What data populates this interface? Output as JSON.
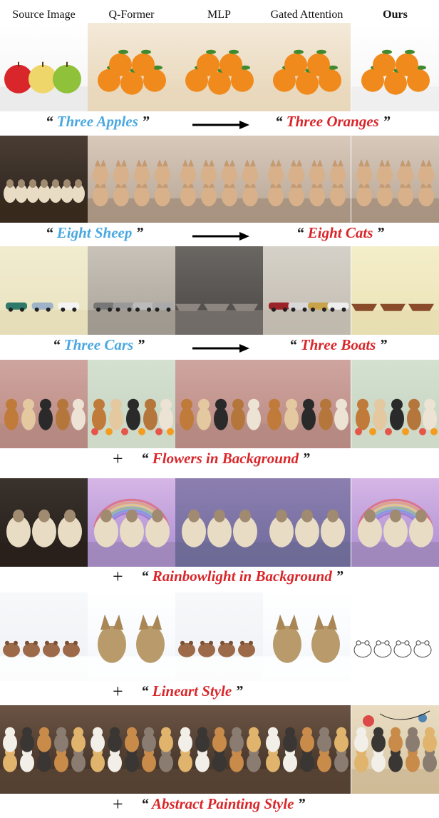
{
  "headers": [
    "Source Image",
    "Q-Former",
    "MLP",
    "Gated Attention",
    "Ours"
  ],
  "rows": [
    {
      "kind": "swap",
      "source_text": "Three Apples",
      "target_text": "Three Oranges",
      "panels": [
        "apples",
        "oranges",
        "oranges",
        "oranges",
        "oranges-ours"
      ]
    },
    {
      "kind": "swap",
      "source_text": "Eight Sheep",
      "target_text": "Eight Cats",
      "panels": [
        "sheep",
        "cats",
        "cats",
        "cats",
        "cats"
      ]
    },
    {
      "kind": "swap",
      "source_text": "Three Cars",
      "target_text": "Three Boats",
      "panels": [
        "cars",
        "cars-gray",
        "boats-blur",
        "cars-red",
        "boats"
      ]
    },
    {
      "kind": "add",
      "add_text": "Flowers in Background",
      "panels": [
        "dogs",
        "dogs-flowers",
        "dogs",
        "dogs",
        "dogs-flowers"
      ]
    },
    {
      "kind": "add",
      "add_text": "Rainbowlight in Background",
      "panels": [
        "sheep3",
        "sheep-rainbow",
        "sheep-purple",
        "sheep-purple",
        "sheep-rainbow"
      ]
    },
    {
      "kind": "add",
      "add_text": "Lineart Style",
      "panels": [
        "hamsters",
        "cats2",
        "hamsters",
        "cats2",
        "hamsters-lineart"
      ]
    },
    {
      "kind": "add",
      "add_text": "Abstract Painting Style",
      "panels": [
        "dogs-row",
        "dogs-row",
        "dogs-row",
        "dogs-row",
        "dogs-abstract"
      ]
    }
  ],
  "colors": {
    "source_text": "#4aa8e0",
    "target_text": "#d9262a",
    "arrow": "#000000"
  }
}
